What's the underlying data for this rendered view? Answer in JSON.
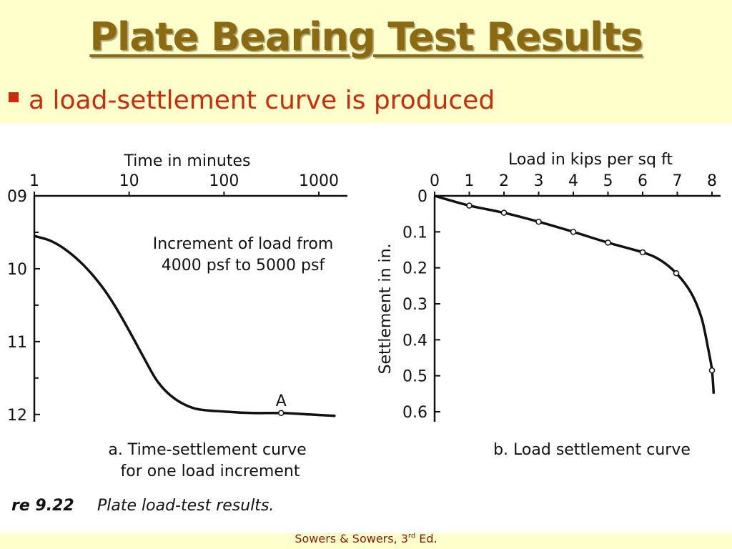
{
  "slide": {
    "title": "Plate Bearing Test Results",
    "bullet": "a load-settlement curve is produced",
    "footer_main": "Sowers & Sowers, 3",
    "footer_sup": "rd",
    "footer_end": " Ed."
  },
  "figure": {
    "fig_label": "re 9.22",
    "fig_caption": "Plate load-test results."
  },
  "colors": {
    "title": "#8c6a12",
    "bullet": "#cc2a0a",
    "slide_background": "#ffffcc",
    "footer": "#8c1a00"
  },
  "chart_data": [
    {
      "type": "line",
      "xlabel": "Time in minutes",
      "x_scale": "log",
      "x_ticks": [
        "1",
        "10",
        "100",
        "1000"
      ],
      "x_tick_values": [
        1,
        10,
        100,
        1000
      ],
      "xlim": [
        1,
        2000
      ],
      "y_ticks": [
        "09",
        "10",
        "11",
        "12"
      ],
      "y_tick_values": [
        9,
        10,
        11,
        12
      ],
      "ylim": [
        9,
        12.1
      ],
      "y_inverted": true,
      "annotation": "Increment of load from",
      "annotation_line2": "4000 psf to 5000 psf",
      "point_label": "A",
      "point": {
        "x": 400,
        "y": 11.98
      },
      "caption_line1": "a.  Time-settlement curve",
      "caption_line2": "for one load increment",
      "series": [
        {
          "values": [
            {
              "x": 1,
              "y": 9.55
            },
            {
              "x": 1.5,
              "y": 9.62
            },
            {
              "x": 2.2,
              "y": 9.75
            },
            {
              "x": 3.3,
              "y": 9.95
            },
            {
              "x": 5,
              "y": 10.22
            },
            {
              "x": 7,
              "y": 10.5
            },
            {
              "x": 10,
              "y": 10.85
            },
            {
              "x": 14,
              "y": 11.2
            },
            {
              "x": 20,
              "y": 11.55
            },
            {
              "x": 30,
              "y": 11.78
            },
            {
              "x": 50,
              "y": 11.92
            },
            {
              "x": 100,
              "y": 11.96
            },
            {
              "x": 200,
              "y": 11.98
            },
            {
              "x": 400,
              "y": 11.98
            },
            {
              "x": 800,
              "y": 12.0
            },
            {
              "x": 1500,
              "y": 12.02
            }
          ]
        }
      ]
    },
    {
      "type": "line",
      "xlabel": "Load in kips per sq ft",
      "ylabel": "Settlement in in.",
      "x_ticks": [
        "0",
        "1",
        "2",
        "3",
        "4",
        "5",
        "6",
        "7",
        "8"
      ],
      "x_tick_values": [
        0,
        1,
        2,
        3,
        4,
        5,
        6,
        7,
        8
      ],
      "xlim": [
        0,
        8
      ],
      "y_ticks": [
        "0",
        "0.1",
        "0.2",
        "0.3",
        "0.4",
        "0.5",
        "0.6"
      ],
      "y_tick_values": [
        0,
        0.1,
        0.2,
        0.3,
        0.4,
        0.5,
        0.6
      ],
      "ylim": [
        0,
        0.6
      ],
      "y_inverted": true,
      "caption": "b.  Load settlement curve",
      "series": [
        {
          "points": [
            {
              "x": 1,
              "y": 0.027
            },
            {
              "x": 2,
              "y": 0.047
            },
            {
              "x": 3,
              "y": 0.072
            },
            {
              "x": 4,
              "y": 0.1
            },
            {
              "x": 5,
              "y": 0.13
            },
            {
              "x": 6,
              "y": 0.157
            },
            {
              "x": 6.97,
              "y": 0.215
            },
            {
              "x": 8,
              "y": 0.485
            }
          ],
          "curve": [
            {
              "x": 0,
              "y": 0.0
            },
            {
              "x": 1,
              "y": 0.027
            },
            {
              "x": 2,
              "y": 0.047
            },
            {
              "x": 3,
              "y": 0.072
            },
            {
              "x": 4,
              "y": 0.1
            },
            {
              "x": 5,
              "y": 0.13
            },
            {
              "x": 6,
              "y": 0.157
            },
            {
              "x": 6.5,
              "y": 0.178
            },
            {
              "x": 6.97,
              "y": 0.215
            },
            {
              "x": 7.4,
              "y": 0.27
            },
            {
              "x": 7.7,
              "y": 0.34
            },
            {
              "x": 7.9,
              "y": 0.43
            },
            {
              "x": 8,
              "y": 0.485
            },
            {
              "x": 8.05,
              "y": 0.55
            }
          ]
        }
      ]
    }
  ]
}
